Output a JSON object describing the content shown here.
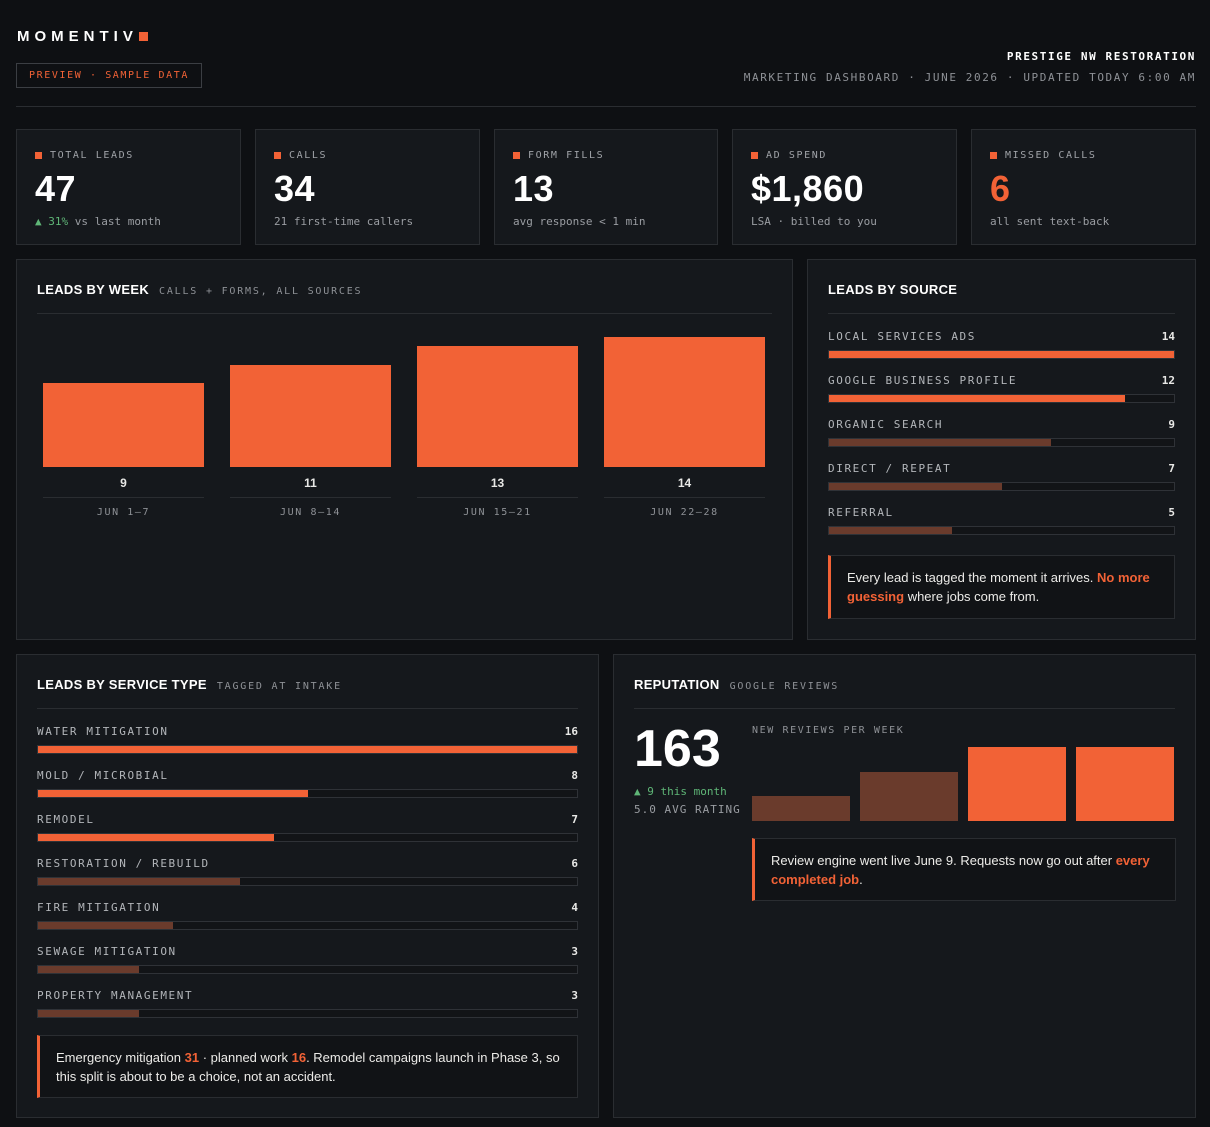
{
  "brand": {
    "name": "MOMENTIV",
    "accent": "#f26236"
  },
  "preview_badge": "PREVIEW · SAMPLE DATA",
  "client_name": "PRESTIGE NW RESTORATION",
  "dashboard_subline": "MARKETING DASHBOARD · JUNE 2026 · UPDATED TODAY 6:00 AM",
  "kpis": [
    {
      "label": "TOTAL LEADS",
      "value": "47",
      "delta": "▲ 31%",
      "sub": " vs last month"
    },
    {
      "label": "CALLS",
      "value": "34",
      "sub": "21 first-time callers"
    },
    {
      "label": "FORM FILLS",
      "value": "13",
      "sub": "avg response < 1 min"
    },
    {
      "label": "AD SPEND",
      "value": "$1,860",
      "sub": "LSA · billed to you"
    },
    {
      "label": "MISSED CALLS",
      "value": "6",
      "sub": "all sent text-back"
    }
  ],
  "leads_by_week": {
    "title": "LEADS BY WEEK",
    "subtitle": "CALLS + FORMS, ALL SOURCES",
    "chart_data": {
      "type": "bar",
      "categories": [
        "JUN 1–7",
        "JUN 8–14",
        "JUN 15–21",
        "JUN 22–28"
      ],
      "values": [
        9,
        11,
        13,
        14
      ]
    }
  },
  "leads_by_source": {
    "title": "LEADS BY SOURCE",
    "chart_data": {
      "type": "bar",
      "categories": [
        "LOCAL SERVICES ADS",
        "GOOGLE BUSINESS PROFILE",
        "ORGANIC SEARCH",
        "DIRECT / REPEAT",
        "REFERRAL"
      ],
      "values": [
        14,
        12,
        9,
        7,
        5
      ],
      "emphasis": [
        true,
        true,
        false,
        false,
        false
      ]
    },
    "callout": {
      "before": "Every lead is tagged the moment it arrives. ",
      "highlight": "No more guessing",
      "after": " where jobs come from."
    }
  },
  "leads_by_service": {
    "title": "LEADS BY SERVICE TYPE",
    "subtitle": "TAGGED AT INTAKE",
    "chart_data": {
      "type": "bar",
      "categories": [
        "WATER MITIGATION",
        "MOLD / MICROBIAL",
        "REMODEL",
        "RESTORATION / REBUILD",
        "FIRE MITIGATION",
        "SEWAGE MITIGATION",
        "PROPERTY MANAGEMENT"
      ],
      "values": [
        16,
        8,
        7,
        6,
        4,
        3,
        3
      ],
      "emphasis": [
        true,
        true,
        true,
        false,
        false,
        false,
        false
      ]
    },
    "callout": {
      "p1": "Emergency mitigation ",
      "n1": "31",
      "p2": " · planned work ",
      "n2": "16",
      "p3": ". Remodel campaigns launch in Phase 3, so this split is about to be a choice, not an accident."
    }
  },
  "reputation": {
    "title": "REPUTATION",
    "subtitle": "GOOGLE REVIEWS",
    "total": "163",
    "delta": "▲ 9 this month",
    "avg": "5.0 AVG RATING",
    "chart_caption": "NEW REVIEWS PER WEEK",
    "chart_data": {
      "type": "bar",
      "values": [
        1.0,
        1.95,
        2.95,
        2.95
      ],
      "emphasis": [
        false,
        false,
        true,
        true
      ]
    },
    "callout": {
      "before": "Review engine went live June 9. Requests now go out after ",
      "highlight": "every completed job",
      "after": "."
    }
  },
  "colors": {
    "bar_primary": "#f26236",
    "bar_muted": "#6a3b2c",
    "positive": "#5fb677"
  }
}
